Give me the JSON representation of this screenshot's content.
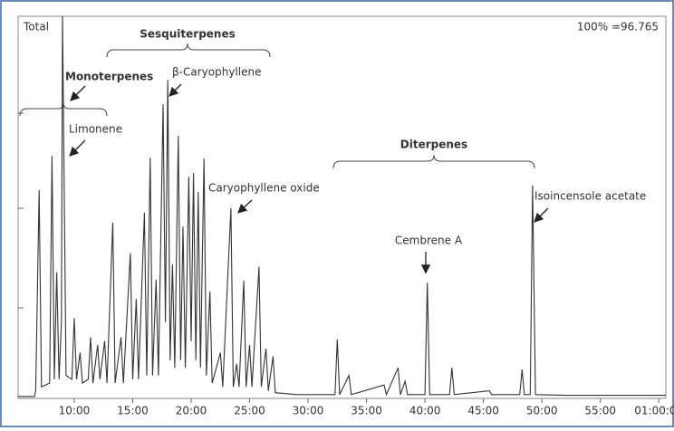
{
  "chart_data": {
    "type": "line",
    "color": "#333333",
    "x": [
      5.2,
      6.6,
      6.7,
      7.0,
      7.2,
      7.9,
      8.1,
      8.3,
      8.5,
      8.7,
      8.9,
      9.0,
      9.1,
      9.3,
      9.8,
      10.0,
      10.2,
      10.5,
      10.7,
      11.2,
      11.4,
      11.6,
      12.0,
      12.2,
      12.6,
      12.8,
      13.3,
      13.5,
      14.0,
      14.2,
      14.8,
      15.0,
      15.3,
      15.5,
      16.0,
      16.2,
      16.5,
      16.7,
      17.0,
      17.2,
      17.6,
      17.8,
      18.0,
      18.2,
      18.4,
      18.6,
      18.9,
      19.1,
      19.3,
      19.5,
      19.8,
      20.0,
      20.2,
      20.4,
      20.6,
      20.8,
      21.1,
      21.3,
      21.6,
      21.8,
      22.5,
      22.7,
      23.4,
      23.6,
      23.9,
      24.1,
      24.5,
      24.7,
      25.0,
      25.2,
      25.8,
      26.0,
      26.4,
      26.6,
      27.0,
      27.2,
      29.0,
      32.3,
      32.5,
      32.7,
      33.5,
      33.7,
      36.5,
      36.7,
      37.7,
      37.9,
      38.3,
      38.5,
      40.0,
      40.2,
      40.4,
      42.1,
      42.3,
      42.5,
      45.5,
      45.7,
      48.1,
      48.3,
      48.5,
      49.0,
      49.2,
      49.45,
      52.0,
      60.6
    ],
    "values": [
      0.5,
      0.5,
      2,
      54.5,
      3,
      4,
      63.5,
      5,
      33,
      5,
      20,
      100,
      69,
      6,
      5,
      21,
      5,
      12,
      4,
      5,
      16,
      4,
      14,
      5,
      15,
      4,
      46,
      4,
      16,
      4,
      38,
      5,
      26,
      5,
      48.6,
      6,
      63,
      6,
      31,
      6,
      77,
      20,
      83.4,
      10,
      35,
      8,
      68.7,
      10,
      45,
      8,
      58,
      15,
      59,
      10,
      54,
      8,
      62.8,
      6,
      28,
      4,
      12,
      3,
      49.8,
      3,
      9,
      3,
      30.8,
      3,
      14,
      3,
      34.4,
      3,
      13,
      2,
      11,
      1.5,
      1,
      1,
      15.4,
      1,
      6,
      1,
      3.5,
      1,
      8,
      1,
      4.5,
      1,
      1,
      30.3,
      1,
      1,
      8,
      1,
      2,
      1,
      1,
      7.6,
      1,
      1,
      55.7,
      1,
      0.8,
      0.8
    ],
    "xlim": [
      5.2,
      60.6
    ],
    "ylim": [
      0,
      100
    ],
    "xticks": [
      {
        "value": 10,
        "label": "10:00"
      },
      {
        "value": 15,
        "label": "15:00"
      },
      {
        "value": 20,
        "label": "20:00"
      },
      {
        "value": 25,
        "label": "25:00"
      },
      {
        "value": 30,
        "label": "30:00"
      },
      {
        "value": 35,
        "label": "35:00"
      },
      {
        "value": 40,
        "label": "40:00"
      },
      {
        "value": 45,
        "label": "45:00"
      },
      {
        "value": 50,
        "label": "50:00"
      },
      {
        "value": 55,
        "label": "55:00"
      },
      {
        "value": 60,
        "label": "01:00:00"
      }
    ],
    "trace_label": "Total",
    "scale_note": "100% =96.765",
    "annotations": [
      "Monoterpenes",
      "Sesquiterpenes",
      "Diterpenes",
      "Limonene",
      "β-Caryophyllene",
      "Caryophyllene oxide",
      "Cembrene A",
      "Isoincensole acetate"
    ]
  }
}
